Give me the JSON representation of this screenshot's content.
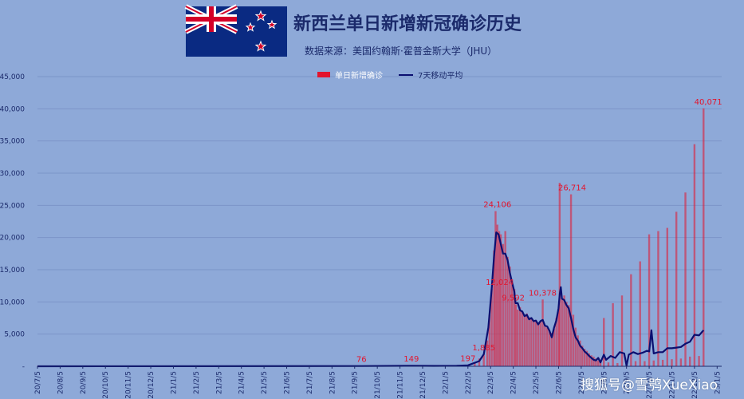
{
  "title": "新西兰单日新增新冠确诊历史",
  "subtitle": "数据来源：美国约翰斯·霍普金斯大学（JHU）",
  "watermark": "搜狐号@雪鸮XueXiao",
  "colors": {
    "background": "#8ea9d8",
    "bar": "#e3142d",
    "line": "#0b0f70",
    "grid": "#7b95c8",
    "annotation": "#e3142d"
  },
  "chart_data": {
    "type": "bar",
    "legend": {
      "position": "top",
      "items": [
        "单日新增确诊",
        "7天移动平均"
      ]
    },
    "y_axis": {
      "min": 0,
      "max": 45000,
      "ticks": [
        "-",
        "5,000",
        "10,000",
        "15,000",
        "20,000",
        "25,000",
        "30,000",
        "35,000",
        "40,000",
        "45,000"
      ]
    },
    "x_ticks": [
      "20/7/5",
      "20/8/5",
      "20/9/5",
      "20/10/5",
      "20/11/5",
      "20/12/5",
      "21/1/5",
      "21/2/5",
      "21/3/5",
      "21/4/5",
      "21/5/5",
      "21/6/5",
      "21/7/5",
      "21/8/5",
      "21/9/5",
      "21/10/5",
      "21/11/5",
      "21/12/5",
      "22/1/5",
      "22/2/5",
      "22/3/5",
      "22/4/5",
      "22/5/5",
      "22/6/5",
      "22/7/5",
      "22/8/5",
      "22/9/5",
      "22/10/5",
      "22/11/5",
      "22/12/5",
      "23/1/5"
    ],
    "x_domain_months": [
      0,
      30.2
    ],
    "annotations": [
      {
        "x": 14.3,
        "y": 76,
        "label": "76"
      },
      {
        "x": 16.5,
        "y": 149,
        "label": "149"
      },
      {
        "x": 19.0,
        "y": 197,
        "label": "197"
      },
      {
        "x": 19.7,
        "y": 1885,
        "label": "1,885"
      },
      {
        "x": 20.4,
        "y": 12024,
        "label": "12,024"
      },
      {
        "x": 20.3,
        "y": 24106,
        "label": "24,106"
      },
      {
        "x": 21.0,
        "y": 9592,
        "label": "9,592"
      },
      {
        "x": 22.3,
        "y": 10378,
        "label": "10,378"
      },
      {
        "x": 23.6,
        "y": 26714,
        "label": "26,714"
      },
      {
        "x": 30.1,
        "y": 40071,
        "label": "40,071"
      }
    ],
    "bars": [
      [
        0,
        30
      ],
      [
        14.0,
        60
      ],
      [
        14.3,
        76
      ],
      [
        15.0,
        80
      ],
      [
        16.0,
        100
      ],
      [
        16.5,
        149
      ],
      [
        17.0,
        100
      ],
      [
        18.0,
        80
      ],
      [
        18.5,
        120
      ],
      [
        19.0,
        197
      ],
      [
        19.3,
        600
      ],
      [
        19.5,
        1200
      ],
      [
        19.7,
        1885
      ],
      [
        19.85,
        4000
      ],
      [
        19.95,
        8000
      ],
      [
        20.05,
        12024
      ],
      [
        20.15,
        18000
      ],
      [
        20.22,
        24106
      ],
      [
        20.3,
        22000
      ],
      [
        20.38,
        21000
      ],
      [
        20.45,
        20500
      ],
      [
        20.55,
        19000
      ],
      [
        20.65,
        21000
      ],
      [
        20.75,
        17000
      ],
      [
        20.85,
        15500
      ],
      [
        20.95,
        13500
      ],
      [
        21.05,
        12000
      ],
      [
        21.12,
        9592
      ],
      [
        21.2,
        8800
      ],
      [
        21.3,
        9200
      ],
      [
        21.4,
        8500
      ],
      [
        21.5,
        7800
      ],
      [
        21.6,
        8200
      ],
      [
        21.7,
        7600
      ],
      [
        21.8,
        7300
      ],
      [
        21.9,
        7000
      ],
      [
        22.0,
        7200
      ],
      [
        22.1,
        6800
      ],
      [
        22.2,
        7000
      ],
      [
        22.3,
        10378
      ],
      [
        22.4,
        6200
      ],
      [
        22.5,
        6000
      ],
      [
        22.6,
        5500
      ],
      [
        22.7,
        5200
      ],
      [
        22.8,
        5800
      ],
      [
        22.9,
        7500
      ],
      [
        23.0,
        9000
      ],
      [
        23.05,
        28500
      ],
      [
        23.15,
        10500
      ],
      [
        23.25,
        11000
      ],
      [
        23.35,
        10000
      ],
      [
        23.45,
        9500
      ],
      [
        23.55,
        26714
      ],
      [
        23.65,
        8000
      ],
      [
        23.75,
        6000
      ],
      [
        23.85,
        4800
      ],
      [
        23.95,
        4000
      ],
      [
        24.05,
        3200
      ],
      [
        24.15,
        2700
      ],
      [
        24.25,
        2400
      ],
      [
        24.35,
        2000
      ],
      [
        24.45,
        1700
      ],
      [
        24.55,
        1500
      ],
      [
        24.65,
        1200
      ],
      [
        24.75,
        900
      ],
      [
        24.85,
        700
      ],
      [
        25.0,
        7500
      ],
      [
        25.2,
        600
      ],
      [
        25.4,
        9800
      ],
      [
        25.6,
        500
      ],
      [
        25.8,
        11000
      ],
      [
        26.0,
        700
      ],
      [
        26.2,
        14300
      ],
      [
        26.4,
        800
      ],
      [
        26.6,
        16300
      ],
      [
        26.8,
        800
      ],
      [
        27.0,
        20500
      ],
      [
        27.2,
        900
      ],
      [
        27.4,
        21000
      ],
      [
        27.6,
        1000
      ],
      [
        27.8,
        21500
      ],
      [
        28.0,
        1100
      ],
      [
        28.2,
        24000
      ],
      [
        28.4,
        1200
      ],
      [
        28.6,
        27000
      ],
      [
        28.8,
        1500
      ],
      [
        29.0,
        34500
      ],
      [
        29.2,
        1600
      ],
      [
        29.4,
        40071
      ]
    ],
    "moving_average": [
      [
        0,
        0
      ],
      [
        14.3,
        40
      ],
      [
        16.5,
        90
      ],
      [
        17.5,
        60
      ],
      [
        18.5,
        90
      ],
      [
        19.0,
        150
      ],
      [
        19.5,
        800
      ],
      [
        19.7,
        1885
      ],
      [
        19.9,
        6000
      ],
      [
        20.05,
        12024
      ],
      [
        20.15,
        17000
      ],
      [
        20.25,
        20800
      ],
      [
        20.35,
        20500
      ],
      [
        20.45,
        19000
      ],
      [
        20.55,
        17500
      ],
      [
        20.65,
        17500
      ],
      [
        20.75,
        16500
      ],
      [
        20.85,
        14500
      ],
      [
        20.95,
        13000
      ],
      [
        21.05,
        11600
      ],
      [
        21.1,
        9800
      ],
      [
        21.2,
        9800
      ],
      [
        21.3,
        8700
      ],
      [
        21.4,
        8500
      ],
      [
        21.5,
        7800
      ],
      [
        21.6,
        8000
      ],
      [
        21.7,
        7300
      ],
      [
        21.8,
        7500
      ],
      [
        21.9,
        7000
      ],
      [
        22.0,
        7100
      ],
      [
        22.1,
        6500
      ],
      [
        22.2,
        7000
      ],
      [
        22.3,
        7200
      ],
      [
        22.4,
        6300
      ],
      [
        22.5,
        6200
      ],
      [
        22.6,
        5500
      ],
      [
        22.7,
        4500
      ],
      [
        22.8,
        6000
      ],
      [
        22.9,
        7100
      ],
      [
        23.0,
        9000
      ],
      [
        23.05,
        11200
      ],
      [
        23.1,
        12300
      ],
      [
        23.15,
        10500
      ],
      [
        23.25,
        10300
      ],
      [
        23.35,
        9500
      ],
      [
        23.45,
        9000
      ],
      [
        23.55,
        7500
      ],
      [
        23.65,
        5800
      ],
      [
        23.75,
        4500
      ],
      [
        23.85,
        4000
      ],
      [
        23.95,
        3200
      ],
      [
        24.05,
        2800
      ],
      [
        24.15,
        2300
      ],
      [
        24.25,
        2000
      ],
      [
        24.35,
        1600
      ],
      [
        24.45,
        1300
      ],
      [
        24.55,
        1000
      ],
      [
        24.65,
        900
      ],
      [
        24.75,
        1300
      ],
      [
        24.85,
        600
      ],
      [
        25.0,
        1800
      ],
      [
        25.1,
        1000
      ],
      [
        25.3,
        1600
      ],
      [
        25.5,
        1300
      ],
      [
        25.7,
        2200
      ],
      [
        25.9,
        2000
      ],
      [
        26.0,
        100
      ],
      [
        26.1,
        1800
      ],
      [
        26.3,
        2200
      ],
      [
        26.5,
        1900
      ],
      [
        26.7,
        2100
      ],
      [
        26.9,
        2400
      ],
      [
        27.0,
        2300
      ],
      [
        27.1,
        5600
      ],
      [
        27.2,
        2000
      ],
      [
        27.4,
        2200
      ],
      [
        27.6,
        2200
      ],
      [
        27.8,
        2800
      ],
      [
        28.0,
        2800
      ],
      [
        28.2,
        2900
      ],
      [
        28.4,
        3000
      ],
      [
        28.6,
        3500
      ],
      [
        28.8,
        3800
      ],
      [
        29.0,
        4900
      ],
      [
        29.2,
        4800
      ],
      [
        29.4,
        5600
      ]
    ]
  }
}
